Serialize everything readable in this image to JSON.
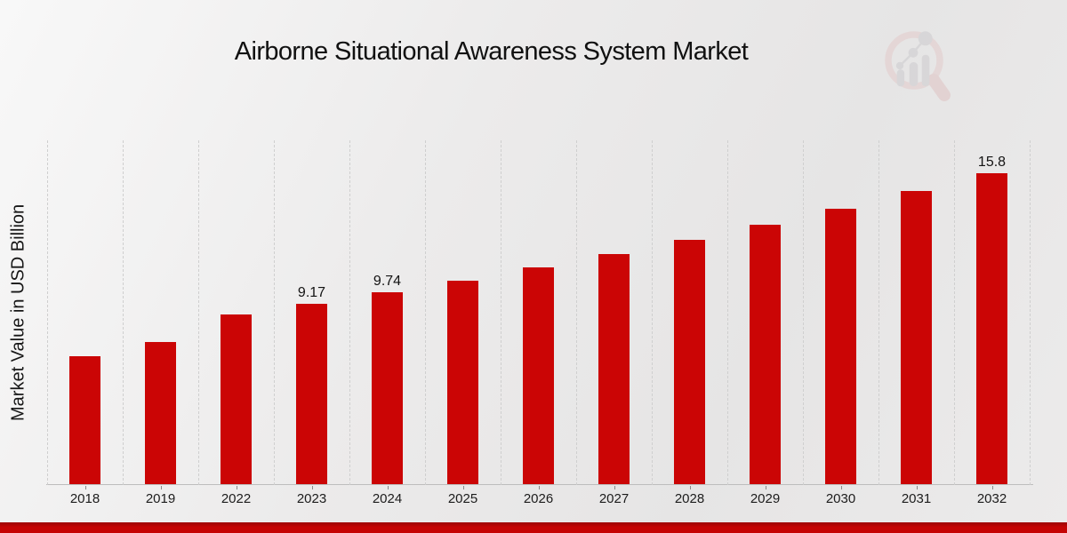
{
  "chart_data": {
    "type": "bar",
    "title": "Airborne Situational Awareness System Market",
    "ylabel": "Market Value in USD Billion",
    "xlabel": "",
    "categories": [
      "2018",
      "2019",
      "2022",
      "2023",
      "2024",
      "2025",
      "2026",
      "2027",
      "2028",
      "2029",
      "2030",
      "2031",
      "2032"
    ],
    "values": [
      6.5,
      7.2,
      8.63,
      9.17,
      9.74,
      10.35,
      11.0,
      11.68,
      12.41,
      13.17,
      14.0,
      14.87,
      15.8
    ],
    "data_labels": [
      "",
      "",
      "",
      "9.17",
      "9.74",
      "",
      "",
      "",
      "",
      "",
      "",
      "",
      "15.8"
    ],
    "ylim": [
      0,
      17.5
    ],
    "grid": "vertical-dotted",
    "legend": "none",
    "bar_color": "#cb0505"
  },
  "style": {
    "background_light": "#f8f8f8",
    "background_dark": "#e6e5e5",
    "footer_band_color": "#c50404",
    "grid_color": "#cfcfcf",
    "axis_color": "#bdbdbd",
    "tick_color": "#8a8a8a",
    "title_color": "#111111",
    "text_color": "#1c1c1c"
  },
  "logo": {
    "name": "magnifier-bar-chart-watermark",
    "ring_color": "#e2c6c6",
    "handle_color": "#dcbaba",
    "bar_color": "#c6c6c9"
  }
}
